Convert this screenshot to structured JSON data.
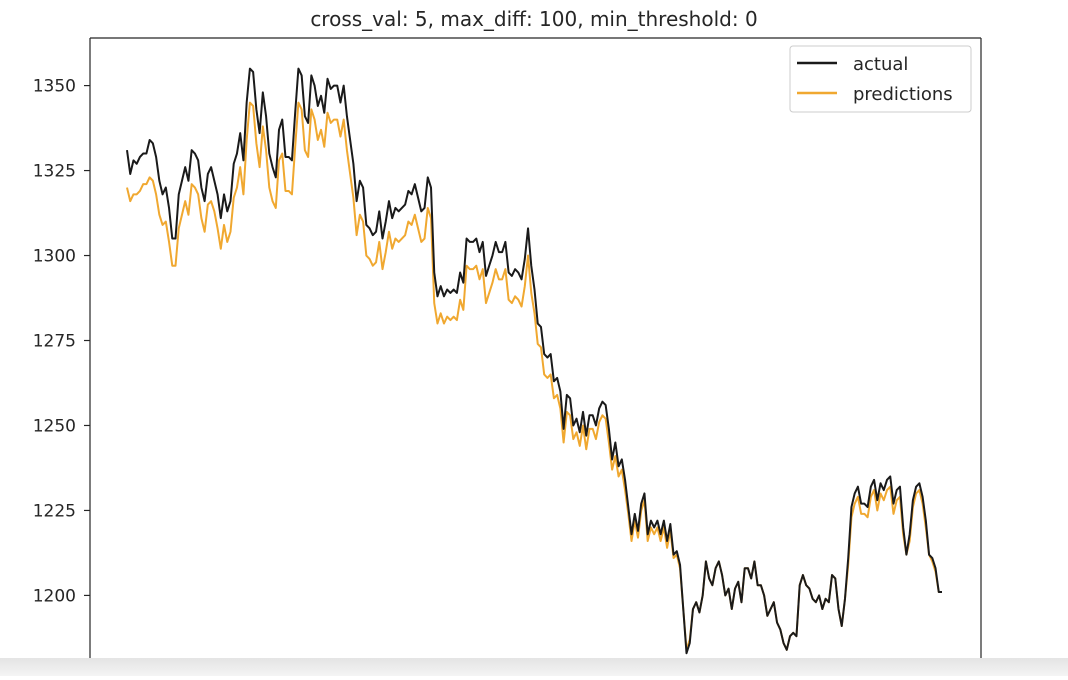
{
  "chart_data": {
    "type": "line",
    "title": "cross_val: 5, max_diff: 100, min_threshold: 0",
    "xlabel": "",
    "ylabel": "",
    "ylim": [
      1181,
      1364
    ],
    "yticks": [
      1200,
      1225,
      1250,
      1275,
      1300,
      1325,
      1350
    ],
    "grid": false,
    "legend": "top-right",
    "colors": {
      "actual": "#1a1a1a",
      "predictions": "#f0a830",
      "axes": "#262626"
    },
    "series": [
      {
        "name": "actual",
        "values": [
          1331,
          1324,
          1328,
          1327,
          1329,
          1330,
          1330,
          1334,
          1333,
          1329,
          1322,
          1318,
          1320,
          1314,
          1305,
          1305,
          1318,
          1322,
          1326,
          1322,
          1331,
          1330,
          1328,
          1320,
          1316,
          1324,
          1326,
          1322,
          1318,
          1311,
          1318,
          1313,
          1316,
          1327,
          1330,
          1336,
          1328,
          1345,
          1355,
          1354,
          1343,
          1336,
          1348,
          1341,
          1330,
          1326,
          1323,
          1337,
          1340,
          1329,
          1329,
          1328,
          1342,
          1355,
          1353,
          1341,
          1339,
          1353,
          1350,
          1344,
          1347,
          1342,
          1352,
          1349,
          1350,
          1350,
          1345,
          1350,
          1341,
          1334,
          1327,
          1316,
          1322,
          1320,
          1309,
          1308,
          1306,
          1307,
          1313,
          1305,
          1310,
          1316,
          1311,
          1314,
          1313,
          1314,
          1315,
          1319,
          1318,
          1321,
          1317,
          1313,
          1314,
          1323,
          1320,
          1295,
          1288,
          1291,
          1288,
          1290,
          1289,
          1290,
          1289,
          1295,
          1292,
          1305,
          1304,
          1304,
          1305,
          1301,
          1304,
          1294,
          1297,
          1300,
          1304,
          1301,
          1301,
          1304,
          1295,
          1294,
          1296,
          1295,
          1293,
          1299,
          1308,
          1297,
          1290,
          1280,
          1279,
          1271,
          1270,
          1271,
          1263,
          1264,
          1260,
          1249,
          1259,
          1258,
          1250,
          1252,
          1248,
          1254,
          1247,
          1253,
          1253,
          1250,
          1255,
          1257,
          1256,
          1249,
          1240,
          1245,
          1238,
          1240,
          1234,
          1226,
          1218,
          1224,
          1219,
          1227,
          1230,
          1218,
          1222,
          1220,
          1222,
          1218,
          1222,
          1216,
          1221,
          1212,
          1213,
          1209,
          1196,
          1183,
          1186,
          1196,
          1198,
          1195,
          1200,
          1210,
          1205,
          1203,
          1208,
          1210,
          1206,
          1200,
          1202,
          1196,
          1202,
          1204,
          1198,
          1208,
          1208,
          1205,
          1210,
          1203,
          1203,
          1200,
          1194,
          1196,
          1198,
          1192,
          1190,
          1186,
          1184,
          1188,
          1189,
          1188,
          1203,
          1206,
          1203,
          1202,
          1199,
          1198,
          1200,
          1196,
          1199,
          1198,
          1206,
          1205,
          1196,
          1191,
          1199,
          1211,
          1226,
          1230,
          1232,
          1227,
          1227,
          1226,
          1232,
          1234,
          1228,
          1233,
          1231,
          1234,
          1235,
          1227,
          1231,
          1232,
          1220,
          1212,
          1218,
          1228,
          1232,
          1233,
          1229,
          1222,
          1212,
          1211,
          1208,
          1201,
          1201
        ]
      },
      {
        "name": "predictions",
        "values": [
          1320,
          1316,
          1318,
          1318,
          1319,
          1321,
          1321,
          1323,
          1322,
          1318,
          1312,
          1309,
          1310,
          1304,
          1297,
          1297,
          1308,
          1312,
          1316,
          1312,
          1321,
          1320,
          1318,
          1311,
          1307,
          1315,
          1316,
          1313,
          1308,
          1302,
          1309,
          1304,
          1307,
          1317,
          1320,
          1326,
          1318,
          1334,
          1345,
          1344,
          1333,
          1326,
          1338,
          1331,
          1320,
          1316,
          1314,
          1328,
          1330,
          1319,
          1319,
          1318,
          1332,
          1345,
          1343,
          1331,
          1329,
          1343,
          1340,
          1334,
          1337,
          1332,
          1342,
          1339,
          1340,
          1340,
          1335,
          1340,
          1331,
          1324,
          1317,
          1306,
          1312,
          1310,
          1300,
          1299,
          1297,
          1298,
          1304,
          1296,
          1301,
          1307,
          1302,
          1305,
          1304,
          1305,
          1306,
          1310,
          1309,
          1312,
          1308,
          1304,
          1305,
          1314,
          1311,
          1286,
          1280,
          1283,
          1280,
          1282,
          1281,
          1282,
          1281,
          1287,
          1284,
          1297,
          1296,
          1296,
          1297,
          1293,
          1296,
          1286,
          1289,
          1292,
          1296,
          1293,
          1293,
          1296,
          1287,
          1286,
          1288,
          1287,
          1285,
          1291,
          1300,
          1289,
          1283,
          1274,
          1273,
          1265,
          1264,
          1265,
          1258,
          1259,
          1255,
          1245,
          1254,
          1253,
          1246,
          1248,
          1244,
          1250,
          1243,
          1249,
          1249,
          1246,
          1251,
          1253,
          1252,
          1245,
          1237,
          1241,
          1235,
          1237,
          1231,
          1224,
          1216,
          1222,
          1217,
          1225,
          1228,
          1216,
          1220,
          1218,
          1220,
          1216,
          1220,
          1214,
          1219,
          1211,
          1212,
          1208,
          1196,
          1184,
          1187,
          1196,
          1198,
          1195,
          1200,
          1210,
          1205,
          1203,
          1208,
          1210,
          1206,
          1200,
          1202,
          1196,
          1202,
          1204,
          1198,
          1208,
          1208,
          1205,
          1210,
          1203,
          1203,
          1200,
          1194,
          1196,
          1198,
          1192,
          1190,
          1186,
          1184,
          1188,
          1189,
          1188,
          1203,
          1206,
          1203,
          1202,
          1199,
          1198,
          1200,
          1196,
          1199,
          1198,
          1206,
          1205,
          1196,
          1191,
          1199,
          1209,
          1223,
          1227,
          1229,
          1224,
          1224,
          1223,
          1229,
          1231,
          1225,
          1230,
          1228,
          1231,
          1232,
          1224,
          1228,
          1229,
          1218,
          1212,
          1216,
          1226,
          1230,
          1231,
          1227,
          1220,
          1212,
          1210,
          1207,
          1201,
          1201
        ]
      }
    ]
  }
}
